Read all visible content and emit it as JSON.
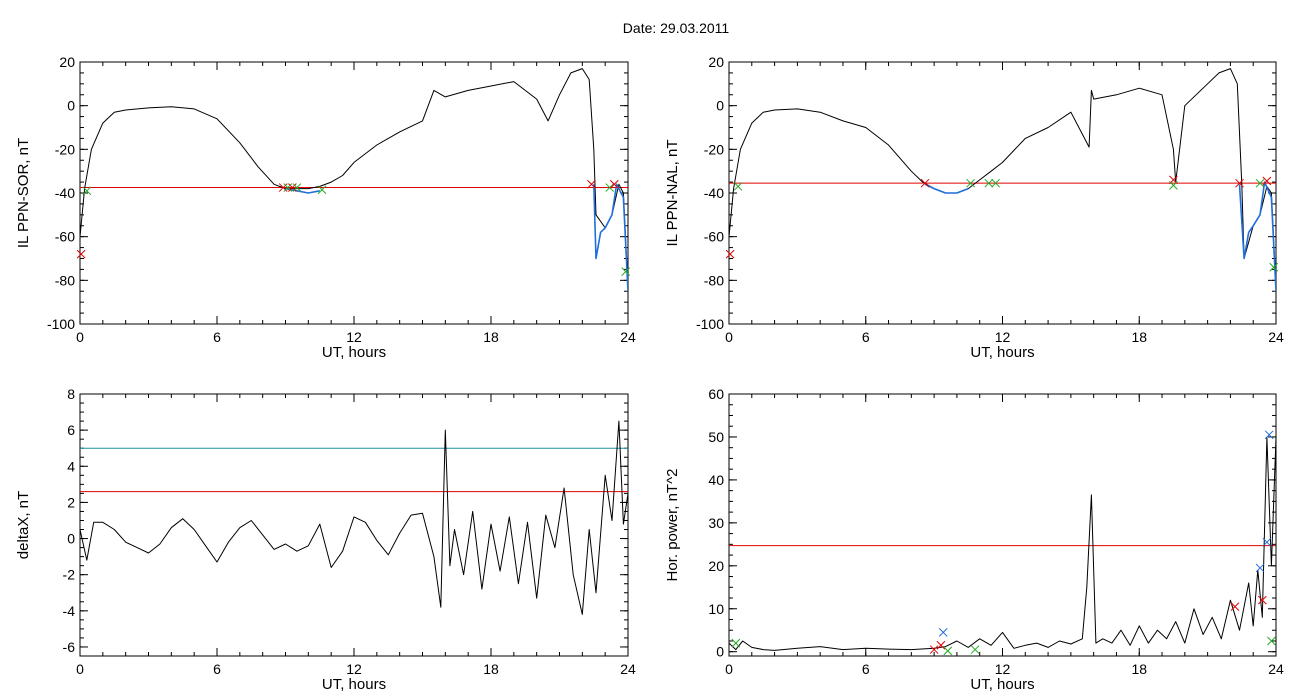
{
  "title": "Date:  29.03.2011",
  "chart_data": [
    {
      "type": "line",
      "ylabel": "IL PPN-SOR, nT",
      "xlabel": "UT, hours",
      "xlim": [
        0,
        24
      ],
      "ylim": [
        -100,
        20
      ],
      "xticks": [
        0,
        6,
        12,
        18,
        24
      ],
      "yticks": [
        -100,
        -80,
        -60,
        -40,
        -20,
        0,
        20
      ],
      "hlines": [
        {
          "value": -37.5,
          "color": "#e00000"
        }
      ],
      "series": [
        {
          "color": "#000000",
          "x": [
            0,
            0.2,
            0.5,
            1,
            1.5,
            2,
            3,
            4,
            5,
            6,
            7,
            7.8,
            8.5,
            9,
            9.5,
            10,
            10.5,
            11,
            11.5,
            12,
            13,
            14,
            15,
            15.5,
            16,
            17,
            18,
            19,
            20,
            20.5,
            21,
            21.5,
            22,
            22.3,
            22.5,
            22.6,
            23,
            23.3,
            23.6,
            23.8,
            24
          ],
          "y": [
            -60,
            -38,
            -20,
            -8,
            -3,
            -2,
            -1,
            -0.5,
            -1.5,
            -6,
            -17,
            -28,
            -36,
            -38,
            -38,
            -38,
            -37,
            -35,
            -32,
            -26,
            -18,
            -12,
            -7,
            7,
            4,
            7,
            9,
            11,
            3,
            -7,
            5,
            15,
            17,
            12,
            -20,
            -50,
            -56,
            -50,
            -36,
            -40,
            -85
          ]
        },
        {
          "color": "#1f6fdc",
          "x": [
            9.0,
            9.5,
            10.0,
            10.5
          ],
          "y": [
            -38,
            -39,
            -40,
            -39
          ]
        },
        {
          "color": "#1f6fdc",
          "x": [
            22.5,
            22.6,
            22.8,
            23.0,
            23.3,
            23.5,
            23.8,
            24.0
          ],
          "y": [
            -36,
            -70,
            -58,
            -56,
            -50,
            -36,
            -42,
            -85
          ]
        }
      ],
      "markers": [
        {
          "x": 0.05,
          "y": -68,
          "color": "#e00000"
        },
        {
          "x": 0.3,
          "y": -39,
          "color": "#22aa22"
        },
        {
          "x": 8.9,
          "y": -37.5,
          "color": "#e00000"
        },
        {
          "x": 9.1,
          "y": -37.5,
          "color": "#22aa22"
        },
        {
          "x": 9.3,
          "y": -37.5,
          "color": "#e00000"
        },
        {
          "x": 9.5,
          "y": -37.5,
          "color": "#22aa22"
        },
        {
          "x": 10.6,
          "y": -38.5,
          "color": "#22aa22"
        },
        {
          "x": 22.4,
          "y": -36,
          "color": "#e00000"
        },
        {
          "x": 23.2,
          "y": -37.5,
          "color": "#22aa22"
        },
        {
          "x": 23.4,
          "y": -36,
          "color": "#e00000"
        },
        {
          "x": 23.9,
          "y": -76,
          "color": "#22aa22"
        }
      ]
    },
    {
      "type": "line",
      "ylabel": "IL PPN-NAL, nT",
      "xlabel": "UT, hours",
      "xlim": [
        0,
        24
      ],
      "ylim": [
        -100,
        20
      ],
      "xticks": [
        0,
        6,
        12,
        18,
        24
      ],
      "yticks": [
        -100,
        -80,
        -60,
        -40,
        -20,
        0,
        20
      ],
      "hlines": [
        {
          "value": -35.5,
          "color": "#e00000"
        }
      ],
      "series": [
        {
          "color": "#000000",
          "x": [
            0,
            0.2,
            0.5,
            1,
            1.5,
            2,
            3,
            4,
            5,
            6,
            7,
            8,
            8.5,
            9,
            9.5,
            10,
            10.5,
            11,
            11.5,
            12,
            13,
            14,
            15,
            15.8,
            15.9,
            16,
            17,
            18,
            19,
            19.5,
            19.6,
            20,
            21,
            21.5,
            22,
            22.3,
            22.5,
            22.6,
            23,
            23.3,
            23.6,
            23.8,
            24
          ],
          "y": [
            -60,
            -38,
            -20,
            -8,
            -3,
            -2,
            -1.5,
            -3,
            -7,
            -10,
            -18,
            -30,
            -35,
            -38,
            -40,
            -40,
            -38,
            -34,
            -30,
            -26,
            -15,
            -10,
            -3,
            -19,
            7,
            3,
            5,
            8,
            5,
            -20,
            -35,
            0,
            10,
            15,
            17,
            10,
            -36,
            -70,
            -55,
            -50,
            -37,
            -40,
            -85
          ]
        },
        {
          "color": "#1f6fdc",
          "x": [
            8.6,
            9.0,
            9.5,
            10.0,
            10.5
          ],
          "y": [
            -36,
            -38,
            -40,
            -40,
            -38
          ]
        },
        {
          "color": "#1f6fdc",
          "x": [
            22.4,
            22.6,
            22.8,
            23.0,
            23.3,
            23.5,
            23.8,
            24.0
          ],
          "y": [
            -36,
            -70,
            -58,
            -55,
            -50,
            -35,
            -42,
            -85
          ]
        }
      ],
      "markers": [
        {
          "x": 0.05,
          "y": -68,
          "color": "#e00000"
        },
        {
          "x": 0.4,
          "y": -37,
          "color": "#22aa22"
        },
        {
          "x": 8.6,
          "y": -35.5,
          "color": "#e00000"
        },
        {
          "x": 10.6,
          "y": -35.5,
          "color": "#22aa22"
        },
        {
          "x": 11.4,
          "y": -35.5,
          "color": "#22aa22"
        },
        {
          "x": 11.7,
          "y": -35.5,
          "color": "#22aa22"
        },
        {
          "x": 19.5,
          "y": -34,
          "color": "#e00000"
        },
        {
          "x": 19.5,
          "y": -36.5,
          "color": "#22aa22"
        },
        {
          "x": 22.4,
          "y": -35.5,
          "color": "#e00000"
        },
        {
          "x": 23.3,
          "y": -35.5,
          "color": "#22aa22"
        },
        {
          "x": 23.6,
          "y": -34.5,
          "color": "#e00000"
        },
        {
          "x": 23.9,
          "y": -74,
          "color": "#22aa22"
        }
      ]
    },
    {
      "type": "line",
      "ylabel": "deltaX, nT",
      "xlabel": "UT, hours",
      "xlim": [
        0,
        24
      ],
      "ylim": [
        -6.5,
        8
      ],
      "xticks": [
        0,
        6,
        12,
        18,
        24
      ],
      "yticks": [
        -6,
        -4,
        -2,
        0,
        2,
        4,
        6,
        8
      ],
      "hlines": [
        {
          "value": 5.0,
          "color": "#1f8fa0"
        },
        {
          "value": 2.6,
          "color": "#e00000"
        }
      ],
      "series": [
        {
          "color": "#000000",
          "x": [
            0,
            0.3,
            0.6,
            1,
            1.5,
            2,
            2.5,
            3,
            3.5,
            4,
            4.5,
            5,
            5.5,
            6,
            6.5,
            7,
            7.5,
            8,
            8.5,
            9,
            9.5,
            10,
            10.5,
            11,
            11.5,
            12,
            12.5,
            13,
            13.5,
            14,
            14.5,
            15,
            15.5,
            15.8,
            16,
            16.2,
            16.4,
            16.8,
            17.2,
            17.6,
            18,
            18.4,
            18.8,
            19.2,
            19.6,
            20,
            20.4,
            20.8,
            21.2,
            21.6,
            22,
            22.3,
            22.6,
            23,
            23.3,
            23.6,
            23.8,
            24
          ],
          "y": [
            0.5,
            -1.2,
            0.9,
            0.9,
            0.5,
            -0.2,
            -0.5,
            -0.8,
            -0.3,
            0.6,
            1.1,
            0.5,
            -0.4,
            -1.3,
            -0.2,
            0.6,
            1.0,
            0.2,
            -0.6,
            -0.3,
            -0.7,
            -0.4,
            0.8,
            -1.6,
            -0.7,
            1.2,
            0.9,
            -0.1,
            -0.9,
            0.3,
            1.3,
            1.4,
            -1.0,
            -3.8,
            6.0,
            -1.5,
            0.5,
            -2.0,
            1.5,
            -2.8,
            0.8,
            -1.8,
            1.2,
            -2.5,
            0.9,
            -3.3,
            1.3,
            -0.5,
            2.8,
            -2.0,
            -4.2,
            0.5,
            -3.0,
            3.5,
            1.0,
            6.5,
            0.8,
            2.5
          ]
        }
      ],
      "markers": []
    },
    {
      "type": "line",
      "ylabel": "Hor. power, nT^2",
      "xlabel": "UT, hours",
      "xlim": [
        0,
        24
      ],
      "ylim": [
        -1,
        60
      ],
      "xticks": [
        0,
        6,
        12,
        18,
        24
      ],
      "yticks": [
        0,
        10,
        20,
        30,
        40,
        50,
        60
      ],
      "hlines": [
        {
          "value": 24.7,
          "color": "#e00000"
        }
      ],
      "series": [
        {
          "color": "#000000",
          "x": [
            0,
            0.3,
            0.6,
            1,
            1.5,
            2,
            3,
            4,
            5,
            6,
            7,
            8,
            9,
            9.5,
            10,
            10.5,
            11,
            11.5,
            12,
            12.5,
            13,
            13.5,
            14,
            14.5,
            15,
            15.5,
            15.7,
            15.9,
            16.1,
            16.4,
            16.8,
            17.2,
            17.6,
            18,
            18.4,
            18.8,
            19.2,
            19.6,
            20,
            20.4,
            20.8,
            21.2,
            21.6,
            22,
            22.4,
            22.8,
            23,
            23.2,
            23.4,
            23.6,
            23.8,
            24
          ],
          "y": [
            2,
            0.5,
            2.5,
            1,
            0.5,
            0.3,
            0.8,
            1.2,
            0.5,
            0.8,
            0.6,
            0.5,
            0.8,
            1.2,
            2.5,
            1.0,
            3.0,
            1.5,
            4.5,
            0.8,
            1.5,
            2.0,
            1.0,
            2.5,
            1.8,
            3.0,
            15,
            36.5,
            2,
            3,
            2,
            5,
            1.5,
            6,
            2,
            5,
            3,
            7,
            2,
            10,
            4,
            8,
            3,
            12,
            5,
            16,
            6,
            19,
            8,
            50,
            20,
            50
          ]
        }
      ],
      "markers": [
        {
          "x": 0.3,
          "y": 2.0,
          "color": "#22aa22"
        },
        {
          "x": 9.0,
          "y": 0.5,
          "color": "#e00000"
        },
        {
          "x": 9.3,
          "y": 1.5,
          "color": "#e00000"
        },
        {
          "x": 9.4,
          "y": 4.5,
          "color": "#1f6fdc"
        },
        {
          "x": 9.6,
          "y": 0.2,
          "color": "#22aa22"
        },
        {
          "x": 10.8,
          "y": 0.5,
          "color": "#22aa22"
        },
        {
          "x": 22.2,
          "y": 10.5,
          "color": "#e00000"
        },
        {
          "x": 23.3,
          "y": 19.5,
          "color": "#1f6fdc"
        },
        {
          "x": 23.4,
          "y": 12.0,
          "color": "#e00000"
        },
        {
          "x": 23.6,
          "y": 25.5,
          "color": "#1f6fdc"
        },
        {
          "x": 23.7,
          "y": 50.5,
          "color": "#1f6fdc"
        },
        {
          "x": 23.8,
          "y": 2.5,
          "color": "#22aa22"
        }
      ]
    }
  ]
}
